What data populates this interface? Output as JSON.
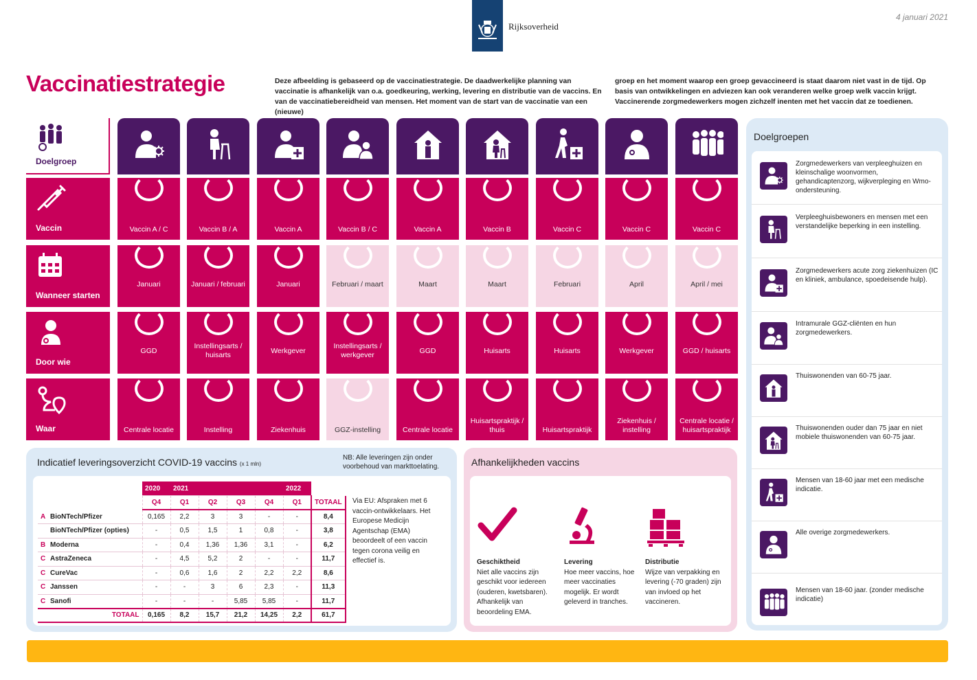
{
  "header": {
    "org": "Rijksoverheid",
    "date": "4 januari 2021"
  },
  "title": "Vaccinatiestrategie",
  "intro": {
    "part1": "Deze afbeelding is gebaseerd op de vaccinatiestrategie. De daadwerkelijke planning van vaccinatie is afhankelijk van o.a. goedkeuring, werking, levering en distributie van de vaccins. En van de vaccinatiebereidheid van mensen. Het moment van de start van de vaccinatie van een (nieuwe)",
    "part2": "groep en het moment waarop een groep gevaccineerd is staat daarom niet vast in de tijd. Op basis van ontwikkelingen en adviezen kan ook veranderen welke groep welk vaccin krijgt. Vaccinerende zorgmedewerkers mogen zichzelf inenten met het vaccin dat ze toedienen."
  },
  "rows": {
    "doelgroep": "Doelgroep",
    "vaccin": "Vaccin",
    "wanneer": "Wanneer starten",
    "doorwie": "Door wie",
    "waar": "Waar"
  },
  "columns": [
    {
      "icon": "caregiver-virus-icon",
      "vaccin": "Vaccin A / C",
      "wanneer": "Januari",
      "doorwie": "GGD",
      "waar": "Centrale locatie"
    },
    {
      "icon": "elderly-walker-icon",
      "vaccin": "Vaccin B / A",
      "wanneer": "Januari / februari",
      "doorwie": "Instellingsarts / huisarts",
      "waar": "Instelling"
    },
    {
      "icon": "caregiver-hospital-icon",
      "vaccin": "Vaccin A",
      "wanneer": "Januari",
      "doorwie": "Werkgever",
      "waar": "Ziekenhuis"
    },
    {
      "icon": "caregiver-client-icon",
      "vaccin": "Vaccin B / C",
      "wanneer": "Februari / maart",
      "doorwie": "Instellingsarts / werkgever",
      "waar": "GGZ-instelling"
    },
    {
      "icon": "house-person-icon",
      "vaccin": "Vaccin A",
      "wanneer": "Maart",
      "doorwie": "GGD",
      "waar": "Centrale locatie"
    },
    {
      "icon": "house-elderly-icon",
      "vaccin": "Vaccin B",
      "wanneer": "Maart",
      "doorwie": "Huisarts",
      "waar": "Huisartspraktijk / thuis"
    },
    {
      "icon": "walker-medical-icon",
      "vaccin": "Vaccin C",
      "wanneer": "Februari",
      "doorwie": "Huisarts",
      "waar": "Huisartspraktijk"
    },
    {
      "icon": "caregiver-icon",
      "vaccin": "Vaccin C",
      "wanneer": "April",
      "doorwie": "Werkgever",
      "waar": "Ziekenhuis / instelling"
    },
    {
      "icon": "group-people-icon",
      "vaccin": "Vaccin C",
      "wanneer": "April / mei",
      "doorwie": "GGD / huisarts",
      "waar": "Centrale locatie / huisartspraktijk"
    }
  ],
  "light_cells": {
    "wanneer": [
      3,
      4,
      5,
      6,
      7,
      8
    ],
    "waar": [
      3
    ]
  },
  "doelgroepen": {
    "title": "Doelgroepen",
    "items": [
      "Zorgmedewerkers van verpleeghuizen en kleinschalige woonvormen, gehandicaptenzorg, wijkverpleging en Wmo-ondersteuning.",
      "Verpleeghuisbewoners en mensen met een verstandelijke beperking in een instelling.",
      "Zorgmedewerkers acute zorg ziekenhuizen (IC en kliniek, ambulance, spoedeisende hulp).",
      "Intramurale GGZ-cliënten en hun zorgmedewerkers.",
      "Thuiswonenden van 60-75 jaar.",
      "Thuiswonenden ouder dan 75 jaar en niet mobiele thuiswonenden van 60-75 jaar.",
      "Mensen van 18-60 jaar met een medische indicatie.",
      "Alle overige zorgmedewerkers.",
      "Mensen van 18-60 jaar. (zonder medische indicatie)"
    ]
  },
  "levering": {
    "title": "Indicatief leveringsoverzicht COVID-19 vaccins",
    "unit": "(x 1 mln)",
    "nb": "NB: Alle leveringen zijn onder voorbehoud van markttoelating.",
    "years": [
      "2020",
      "2021",
      "2022"
    ],
    "quarters": [
      "Q4",
      "Q1",
      "Q2",
      "Q3",
      "Q4",
      "Q1"
    ],
    "total_header": "TOTAAL",
    "rows": [
      {
        "cat": "A",
        "name": "BioNTech/Pfizer",
        "values": [
          "0,165",
          "2,2",
          "3",
          "3",
          "-",
          "-"
        ],
        "total": "8,4"
      },
      {
        "cat": "",
        "name": "BioNTech/Pfizer (opties)",
        "values": [
          "-",
          "0,5",
          "1,5",
          "1",
          "0,8",
          "-"
        ],
        "total": "3,8"
      },
      {
        "cat": "B",
        "name": "Moderna",
        "values": [
          "-",
          "0,4",
          "1,36",
          "1,36",
          "3,1",
          "-"
        ],
        "total": "6,2"
      },
      {
        "cat": "C",
        "name": "AstraZeneca",
        "values": [
          "-",
          "4,5",
          "5,2",
          "2",
          "-",
          "-"
        ],
        "total": "11,7"
      },
      {
        "cat": "C",
        "name": "CureVac",
        "values": [
          "-",
          "0,6",
          "1,6",
          "2",
          "2,2",
          "2,2"
        ],
        "total": "8,6"
      },
      {
        "cat": "C",
        "name": "Janssen",
        "values": [
          "-",
          "-",
          "3",
          "6",
          "2,3",
          "-"
        ],
        "total": "11,3"
      },
      {
        "cat": "C",
        "name": "Sanofi",
        "values": [
          "-",
          "-",
          "-",
          "5,85",
          "5,85",
          "-"
        ],
        "total": "11,7"
      }
    ],
    "total_row": {
      "name": "TOTAAL",
      "values": [
        "0,165",
        "8,2",
        "15,7",
        "21,2",
        "14,25",
        "2,2"
      ],
      "total": "61,7"
    },
    "note": "Via EU: Afspraken met 6 vaccin-ontwikkelaars. Het Europese Medicijn Agentschap (EMA) beoordeelt of een vaccin tegen corona veilig en effectief is."
  },
  "afhankelijkheden": {
    "title": "Afhankelijkheden vaccins",
    "items": [
      {
        "title": "Geschiktheid",
        "text": "Niet alle vaccins zijn geschikt voor iedereen (ouderen, kwetsbaren). Afhankelijk van beoordeling EMA."
      },
      {
        "title": "Levering",
        "text": "Hoe meer vaccins, hoe meer vaccinaties mogelijk. Er wordt geleverd in tranches."
      },
      {
        "title": "Distributie",
        "text": "Wijze van verpakking en levering (-70 graden) zijn van invloed op het vaccineren."
      }
    ]
  },
  "colors": {
    "pink": "#c8005a",
    "purple": "#4b1864",
    "light_pink": "#f6d6e4",
    "light_blue": "#ddeaf6",
    "yellow": "#ffb612",
    "navy": "#154273"
  }
}
